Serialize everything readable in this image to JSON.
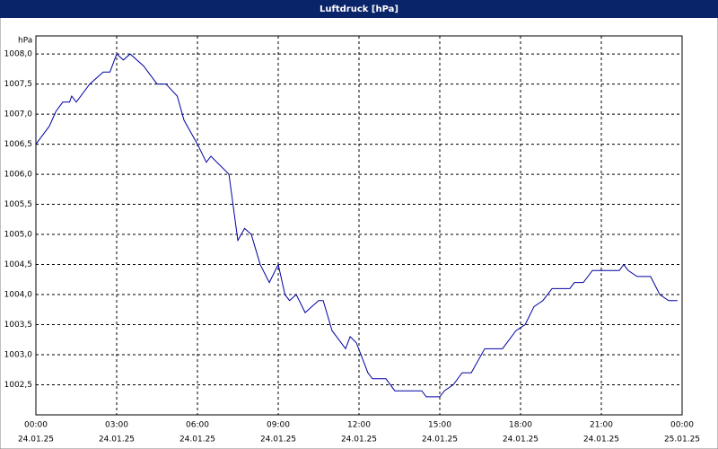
{
  "chart_data": {
    "type": "line",
    "title": "Luftdruck [hPa]",
    "y_label": "hPa",
    "x": [
      0,
      0.5,
      0.75,
      1,
      1.25,
      1.33,
      1.5,
      2,
      2.5,
      2.75,
      3,
      3.25,
      3.5,
      4,
      4.5,
      4.83,
      5.25,
      5.5,
      6,
      6.33,
      6.5,
      7.17,
      7.5,
      7.75,
      8,
      8.33,
      8.67,
      9,
      9.25,
      9.42,
      9.67,
      10,
      10.25,
      10.5,
      10.67,
      11,
      11.5,
      11.67,
      11.9,
      12.33,
      12.5,
      13,
      13.33,
      14.33,
      14.5,
      15,
      15.17,
      15.5,
      15.83,
      16.17,
      16.67,
      17.33,
      17.83,
      18.17,
      18.5,
      18.83,
      19.17,
      19.83,
      20,
      20.33,
      20.67,
      21.67,
      21.83,
      22,
      22.33,
      22.83,
      23.17,
      23.5,
      23.83
    ],
    "series": [
      {
        "name": "Luftdruck",
        "color": "#0000a0",
        "values": [
          1006.5,
          1006.8,
          1007.05,
          1007.2,
          1007.2,
          1007.3,
          1007.2,
          1007.5,
          1007.7,
          1007.7,
          1008.0,
          1007.9,
          1008.0,
          1007.8,
          1007.5,
          1007.5,
          1007.3,
          1006.9,
          1006.5,
          1006.2,
          1006.3,
          1006.0,
          1004.9,
          1005.1,
          1005.0,
          1004.5,
          1004.2,
          1004.5,
          1004.0,
          1003.9,
          1004.0,
          1003.7,
          1003.8,
          1003.9,
          1003.9,
          1003.4,
          1003.1,
          1003.3,
          1003.2,
          1002.7,
          1002.6,
          1002.6,
          1002.4,
          1002.4,
          1002.3,
          1002.3,
          1002.4,
          1002.5,
          1002.7,
          1002.7,
          1003.1,
          1003.1,
          1003.4,
          1003.5,
          1003.8,
          1003.9,
          1004.1,
          1004.1,
          1004.2,
          1004.2,
          1004.4,
          1004.4,
          1004.5,
          1004.4,
          1004.3,
          1004.3,
          1004.0,
          1003.9,
          1003.9
        ]
      }
    ],
    "xlim": [
      0,
      24
    ],
    "ylim": [
      1002,
      1008.3
    ],
    "xticks": [
      {
        "value": 0,
        "label": "00:00"
      },
      {
        "value": 3,
        "label": "03:00"
      },
      {
        "value": 6,
        "label": "06:00"
      },
      {
        "value": 9,
        "label": "09:00"
      },
      {
        "value": 12,
        "label": "12:00"
      },
      {
        "value": 15,
        "label": "15:00"
      },
      {
        "value": 18,
        "label": "18:00"
      },
      {
        "value": 21,
        "label": "21:00"
      },
      {
        "value": 24,
        "label": "00:00"
      }
    ],
    "xtick_dates": [
      "24.01.25",
      "24.01.25",
      "24.01.25",
      "24.01.25",
      "24.01.25",
      "24.01.25",
      "24.01.25",
      "24.01.25",
      "25.01.25"
    ],
    "yticks": [
      {
        "value": 1002.5,
        "label": "1002,5"
      },
      {
        "value": 1003,
        "label": "1003,0"
      },
      {
        "value": 1003.5,
        "label": "1003,5"
      },
      {
        "value": 1004,
        "label": "1004,0"
      },
      {
        "value": 1004.5,
        "label": "1004,5"
      },
      {
        "value": 1005,
        "label": "1005,0"
      },
      {
        "value": 1005.5,
        "label": "1005,5"
      },
      {
        "value": 1006,
        "label": "1006,0"
      },
      {
        "value": 1006.5,
        "label": "1006,5"
      },
      {
        "value": 1007,
        "label": "1007,0"
      },
      {
        "value": 1007.5,
        "label": "1007,5"
      },
      {
        "value": 1008,
        "label": "1008,0"
      }
    ],
    "grid": true
  }
}
